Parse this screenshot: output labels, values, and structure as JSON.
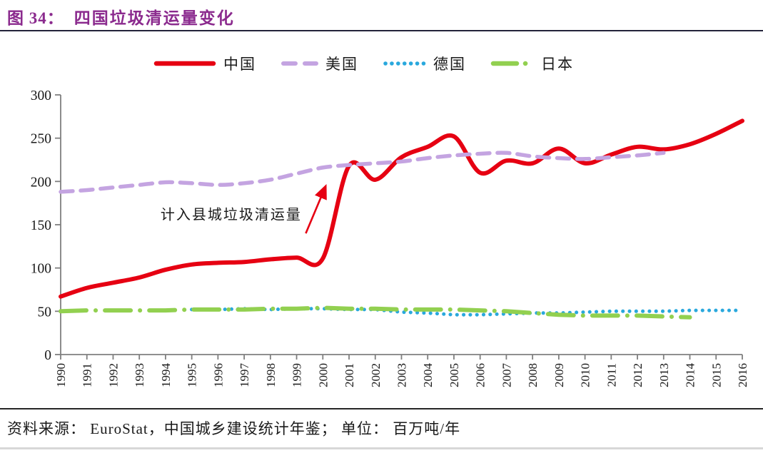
{
  "header": {
    "figure_label": "图 34：",
    "title": "四国垃圾清运量变化"
  },
  "footer": {
    "source_text": "资料来源： EuroStat，中国城乡建设统计年鉴； 单位： 百万吨/年"
  },
  "chart_data": {
    "type": "line",
    "title": "四国垃圾清运量变化",
    "unit": "百万吨/年",
    "ylim": [
      0,
      300
    ],
    "y_ticks": [
      0,
      50,
      100,
      150,
      200,
      250,
      300
    ],
    "x_ticks": [
      1990,
      1991,
      1992,
      1993,
      1994,
      1995,
      1996,
      1997,
      1998,
      1999,
      2000,
      2001,
      2002,
      2003,
      2004,
      2005,
      2006,
      2007,
      2008,
      2009,
      2010,
      2011,
      2012,
      2013,
      2014,
      2015,
      2016
    ],
    "grid": false,
    "legend_position": "top",
    "axis_color": "#7f7f7f",
    "text_color": "#1a1a1a",
    "series": [
      {
        "name": "中国",
        "color": "#e60012",
        "style": "solid",
        "start_year": 1990,
        "values": [
          67,
          77,
          83,
          89,
          98,
          104,
          106,
          107,
          110,
          112,
          111,
          218,
          202,
          228,
          240,
          252,
          210,
          224,
          221,
          238,
          221,
          231,
          240,
          237,
          243,
          255,
          270
        ]
      },
      {
        "name": "美国",
        "color": "#c4a4e1",
        "style": "dashed",
        "start_year": 1990,
        "values": [
          188,
          190,
          193,
          196,
          199,
          198,
          196,
          198,
          202,
          209,
          216,
          219,
          221,
          223,
          227,
          230,
          232,
          233,
          229,
          227,
          226,
          228,
          230,
          233
        ]
      },
      {
        "name": "德国",
        "color": "#29a8dd",
        "style": "dotted",
        "start_year": 1995,
        "values": [
          52,
          52,
          53,
          52,
          53,
          53,
          52,
          52,
          49,
          48,
          46,
          46,
          47,
          48,
          48,
          49,
          50,
          50,
          50,
          51,
          51,
          51
        ]
      },
      {
        "name": "日本",
        "color": "#92d050",
        "style": "dashdot",
        "start_year": 1990,
        "values": [
          50,
          51,
          51,
          51,
          51,
          52,
          52,
          52,
          53,
          53,
          54,
          53,
          53,
          52,
          52,
          52,
          51,
          50,
          48,
          46,
          45,
          45,
          45,
          44,
          43
        ]
      }
    ],
    "annotation": {
      "text": "计入县城垃圾清运量",
      "color": "#1a1a1a",
      "arrow_color": "#e60012",
      "text_anchor": {
        "year": 1999.2,
        "value": 156
      },
      "arrow": {
        "from": {
          "year": 1999.35,
          "value": 140
        },
        "to": {
          "year": 2000.1,
          "value": 194
        }
      }
    }
  }
}
